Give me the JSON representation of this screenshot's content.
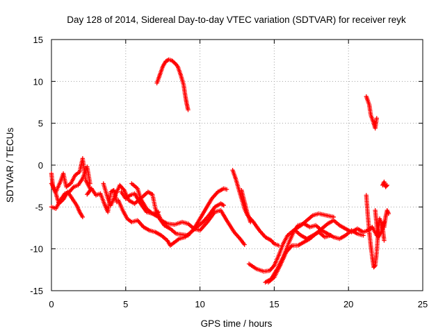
{
  "chart_data": {
    "type": "scatter",
    "title": "Day 128 of 2014, Sidereal Day-to-day VTEC variation (SDTVAR) for receiver reyk",
    "xlabel": "GPS time / hours",
    "ylabel": "SDTVAR / TECUs",
    "xlim": [
      0,
      25
    ],
    "ylim": [
      -15,
      15
    ],
    "xticks": [
      0,
      5,
      10,
      15,
      20,
      25
    ],
    "yticks": [
      -15,
      -10,
      -5,
      0,
      5,
      10,
      15
    ],
    "grid": true,
    "marker": "plus",
    "series": [
      {
        "name": "SDTVAR",
        "color": "#ff0000",
        "arcs": [
          [
            [
              0.0,
              -2.2
            ],
            [
              0.3,
              -3.2
            ],
            [
              0.6,
              -2.0
            ],
            [
              0.8,
              -1.0
            ],
            [
              1.0,
              -2.6
            ],
            [
              1.3,
              -2.2
            ],
            [
              1.6,
              -1.2
            ],
            [
              1.9,
              -0.8
            ],
            [
              2.1,
              0.8
            ],
            [
              2.3,
              -1.8
            ],
            [
              2.6,
              -2.8
            ]
          ],
          [
            [
              0.0,
              -5.0
            ],
            [
              0.3,
              -5.2
            ],
            [
              0.6,
              -4.2
            ],
            [
              0.9,
              -3.4
            ],
            [
              1.2,
              -3.2
            ],
            [
              1.5,
              -2.6
            ],
            [
              1.8,
              -2.4
            ],
            [
              2.1,
              -1.6
            ],
            [
              2.4,
              -0.2
            ],
            [
              2.6,
              -2.2
            ]
          ],
          [
            [
              0.0,
              -1.0
            ],
            [
              0.1,
              -2.6
            ],
            [
              0.3,
              -3.4
            ],
            [
              0.5,
              -4.6
            ],
            [
              0.8,
              -4.1
            ],
            [
              1.1,
              -3.2
            ],
            [
              1.4,
              -4.0
            ],
            [
              1.7,
              -4.8
            ],
            [
              1.9,
              -5.6
            ],
            [
              2.1,
              -6.2
            ]
          ],
          [
            [
              2.4,
              -3.5
            ],
            [
              2.7,
              -2.8
            ],
            [
              3.0,
              -3.6
            ],
            [
              3.3,
              -3.4
            ],
            [
              3.6,
              -4.8
            ],
            [
              3.8,
              -5.6
            ],
            [
              4.0,
              -3.2
            ],
            [
              4.2,
              -3.0
            ],
            [
              4.4,
              -4.4
            ]
          ],
          [
            [
              3.5,
              -2.2
            ],
            [
              3.8,
              -4.0
            ],
            [
              4.0,
              -4.8
            ],
            [
              4.3,
              -3.6
            ],
            [
              4.6,
              -2.4
            ],
            [
              4.9,
              -3.0
            ],
            [
              5.2,
              -4.2
            ],
            [
              5.6,
              -4.6
            ],
            [
              6.0,
              -4.0
            ],
            [
              6.5,
              -3.2
            ],
            [
              6.8,
              -3.5
            ],
            [
              7.0,
              -5.2
            ],
            [
              7.4,
              -6.6
            ],
            [
              7.8,
              -7.0
            ],
            [
              8.3,
              -7.1
            ],
            [
              8.8,
              -6.8
            ],
            [
              9.2,
              -7.0
            ],
            [
              9.6,
              -7.6
            ],
            [
              10.0,
              -7.8
            ],
            [
              10.5,
              -6.8
            ],
            [
              11.0,
              -5.6
            ],
            [
              11.4,
              -5.4
            ],
            [
              11.8,
              -6.6
            ],
            [
              12.3,
              -8.0
            ],
            [
              12.7,
              -8.8
            ],
            [
              13.0,
              -9.5
            ]
          ],
          [
            [
              4.7,
              -3.2
            ],
            [
              5.0,
              -4.0
            ],
            [
              5.3,
              -3.6
            ],
            [
              5.6,
              -3.4
            ],
            [
              6.0,
              -4.6
            ],
            [
              6.4,
              -5.6
            ],
            [
              6.8,
              -5.8
            ],
            [
              7.2,
              -6.2
            ],
            [
              7.6,
              -7.2
            ],
            [
              8.0,
              -7.6
            ],
            [
              8.4,
              -8.2
            ],
            [
              8.8,
              -8.3
            ],
            [
              9.2,
              -8.4
            ],
            [
              9.6,
              -7.6
            ],
            [
              10.0,
              -6.4
            ],
            [
              10.4,
              -5.2
            ],
            [
              10.8,
              -4.0
            ],
            [
              11.2,
              -3.2
            ],
            [
              11.6,
              -2.8
            ],
            [
              11.8,
              -2.9
            ]
          ],
          [
            [
              4.5,
              -4.2
            ],
            [
              4.8,
              -5.4
            ],
            [
              5.1,
              -6.4
            ],
            [
              5.4,
              -6.8
            ],
            [
              5.8,
              -6.6
            ],
            [
              6.2,
              -7.4
            ],
            [
              6.6,
              -7.8
            ],
            [
              7.0,
              -8.0
            ],
            [
              7.4,
              -8.4
            ],
            [
              7.8,
              -9.0
            ],
            [
              8.0,
              -9.6
            ],
            [
              8.3,
              -9.2
            ],
            [
              8.6,
              -8.8
            ],
            [
              9.0,
              -8.6
            ],
            [
              9.4,
              -8.0
            ],
            [
              9.8,
              -7.4
            ],
            [
              10.2,
              -6.8
            ],
            [
              10.6,
              -6.0
            ],
            [
              11.0,
              -5.0
            ],
            [
              11.4,
              -4.6
            ],
            [
              11.6,
              -4.8
            ]
          ],
          [
            [
              5.4,
              -2.2
            ],
            [
              5.8,
              -2.8
            ],
            [
              6.0,
              -4.0
            ],
            [
              6.4,
              -5.2
            ],
            [
              6.8,
              -5.8
            ],
            [
              7.2,
              -5.6
            ]
          ],
          [
            [
              7.1,
              9.8
            ],
            [
              7.3,
              10.8
            ],
            [
              7.5,
              11.8
            ],
            [
              7.7,
              12.4
            ],
            [
              7.9,
              12.6
            ],
            [
              8.1,
              12.5
            ],
            [
              8.3,
              12.2
            ],
            [
              8.5,
              11.8
            ],
            [
              8.7,
              10.8
            ],
            [
              8.9,
              9.6
            ],
            [
              9.0,
              8.4
            ],
            [
              9.1,
              7.4
            ],
            [
              9.2,
              6.6
            ]
          ],
          [
            [
              12.2,
              -0.6
            ],
            [
              12.4,
              -1.6
            ],
            [
              12.6,
              -2.8
            ],
            [
              12.8,
              -4.0
            ],
            [
              13.0,
              -5.2
            ],
            [
              13.2,
              -6.0
            ],
            [
              13.6,
              -6.8
            ],
            [
              14.0,
              -7.8
            ],
            [
              14.4,
              -8.6
            ],
            [
              14.8,
              -9.0
            ],
            [
              15.0,
              -9.4
            ],
            [
              15.3,
              -9.6
            ]
          ],
          [
            [
              12.8,
              -3.0
            ],
            [
              13.0,
              -4.4
            ],
            [
              13.2,
              -5.8
            ],
            [
              13.4,
              -6.8
            ]
          ],
          [
            [
              13.3,
              -11.8
            ],
            [
              13.8,
              -12.4
            ],
            [
              14.3,
              -12.7
            ],
            [
              14.7,
              -12.6
            ],
            [
              15.0,
              -12.0
            ],
            [
              15.3,
              -10.8
            ],
            [
              15.6,
              -9.4
            ],
            [
              15.9,
              -8.4
            ],
            [
              16.3,
              -7.8
            ],
            [
              16.8,
              -7.2
            ],
            [
              17.2,
              -6.6
            ],
            [
              17.6,
              -6.0
            ],
            [
              18.0,
              -5.8
            ],
            [
              18.5,
              -6.0
            ],
            [
              19.0,
              -6.2
            ]
          ],
          [
            [
              14.4,
              -14.0
            ],
            [
              14.8,
              -13.6
            ],
            [
              15.2,
              -12.4
            ],
            [
              15.6,
              -11.0
            ],
            [
              16.0,
              -9.2
            ],
            [
              16.3,
              -8.0
            ],
            [
              16.6,
              -7.2
            ],
            [
              17.0,
              -7.0
            ],
            [
              17.4,
              -7.4
            ],
            [
              17.8,
              -7.2
            ],
            [
              18.2,
              -7.8
            ],
            [
              18.6,
              -8.2
            ],
            [
              19.0,
              -8.6
            ],
            [
              19.4,
              -8.8
            ],
            [
              19.8,
              -8.4
            ],
            [
              20.2,
              -7.8
            ],
            [
              20.6,
              -8.2
            ],
            [
              21.0,
              -8.4
            ]
          ],
          [
            [
              14.6,
              -14.0
            ],
            [
              15.0,
              -13.4
            ],
            [
              15.4,
              -12.0
            ],
            [
              15.8,
              -10.4
            ],
            [
              16.2,
              -9.6
            ],
            [
              16.6,
              -9.6
            ],
            [
              17.0,
              -9.2
            ],
            [
              17.4,
              -8.8
            ],
            [
              17.8,
              -8.2
            ],
            [
              18.2,
              -7.6
            ],
            [
              18.6,
              -7.0
            ],
            [
              19.0,
              -6.6
            ],
            [
              19.4,
              -7.2
            ],
            [
              19.8,
              -7.6
            ],
            [
              20.2,
              -8.0
            ],
            [
              20.6,
              -7.6
            ],
            [
              21.0,
              -8.0
            ],
            [
              21.3,
              -7.8
            ],
            [
              21.6,
              -7.4
            ],
            [
              21.9,
              -8.4
            ]
          ],
          [
            [
              16.4,
              -7.8
            ],
            [
              16.8,
              -8.4
            ],
            [
              17.2,
              -8.8
            ],
            [
              17.6,
              -8.4
            ],
            [
              18.0,
              -8.0
            ],
            [
              18.4,
              -8.6
            ],
            [
              18.8,
              -8.4
            ]
          ],
          [
            [
              21.2,
              8.2
            ],
            [
              21.4,
              7.2
            ],
            [
              21.5,
              6.0
            ],
            [
              21.7,
              5.0
            ],
            [
              21.8,
              4.4
            ],
            [
              21.9,
              5.6
            ]
          ],
          [
            [
              21.2,
              -3.6
            ],
            [
              21.3,
              -6.0
            ],
            [
              21.4,
              -8.0
            ],
            [
              21.5,
              -9.6
            ],
            [
              21.6,
              -11.0
            ],
            [
              21.7,
              -12.2
            ],
            [
              21.8,
              -12.0
            ],
            [
              21.9,
              -10.4
            ],
            [
              22.0,
              -8.0
            ],
            [
              22.1,
              -6.4
            ],
            [
              22.3,
              -7.4
            ],
            [
              22.4,
              -9.0
            ]
          ],
          [
            [
              21.8,
              -5.4
            ],
            [
              21.9,
              -7.2
            ],
            [
              22.0,
              -8.6
            ],
            [
              22.2,
              -8.0
            ],
            [
              22.4,
              -6.8
            ]
          ],
          [
            [
              22.3,
              -2.4
            ],
            [
              22.4,
              -2.0
            ],
            [
              22.5,
              -2.6
            ],
            [
              22.6,
              -2.4
            ]
          ],
          [
            [
              22.4,
              -7.4
            ],
            [
              22.5,
              -6.2
            ],
            [
              22.6,
              -5.4
            ],
            [
              22.7,
              -5.8
            ]
          ]
        ]
      }
    ]
  }
}
